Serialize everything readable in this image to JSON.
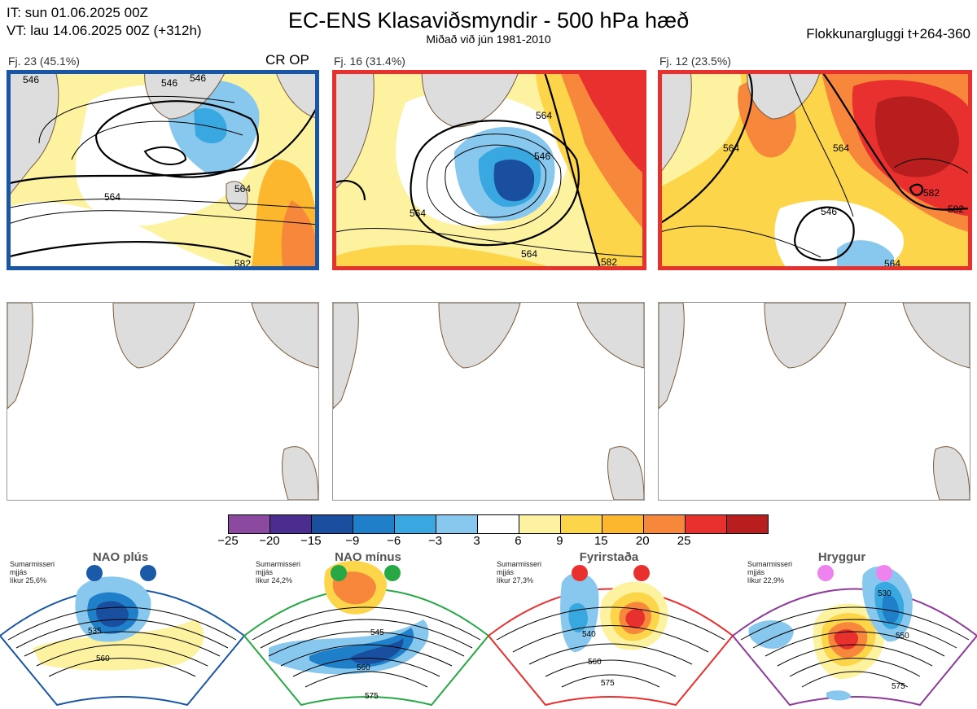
{
  "header": {
    "it_line": "IT: sun 01.06.2025 00Z",
    "vt_line": "VT: lau 14.06.2025 00Z  (+312h)",
    "title": "EC-ENS Klasaviðsmyndir - 500 hPa hæð",
    "subtitle": "Miðað við jún 1981-2010",
    "window": "Flokkunargluggi t+264-360"
  },
  "clusters": [
    {
      "label": "Fj. 23 (45.1%)",
      "badge": "CR OP",
      "frame_color": "#1a56a6",
      "contours": [
        "546",
        "546",
        "564",
        "564",
        "582",
        "546"
      ]
    },
    {
      "label": "Fj. 16 (31.4%)",
      "badge": "",
      "frame_color": "#e8302e",
      "contours": [
        "564",
        "546",
        "564",
        "564",
        "582"
      ]
    },
    {
      "label": "Fj. 12 (23.5%)",
      "badge": "",
      "frame_color": "#e8302e",
      "contours": [
        "564",
        "564",
        "546",
        "582",
        "582",
        "564"
      ]
    }
  ],
  "colorbar": {
    "colors": [
      "#8b4a9f",
      "#4a2d8f",
      "#1a4fa0",
      "#1f7fc8",
      "#39a8e0",
      "#88c8ee",
      "#ffffff",
      "#fdf2a0",
      "#fdd54b",
      "#fdb72e",
      "#f7873a",
      "#e8302e",
      "#b81e1e"
    ],
    "labels": [
      "−25",
      "−20",
      "−15",
      "−9",
      "−6",
      "−3",
      "3",
      "6",
      "9",
      "15",
      "20",
      "25"
    ]
  },
  "regimes": [
    {
      "name": "NAO plús",
      "season": "Sumarmisseri",
      "mode": "mjjás",
      "prob": "líkur 25,6%",
      "color": "#1a5aa8",
      "frame": "#1a56a6",
      "contours": [
        "535",
        "560"
      ]
    },
    {
      "name": "NAO mínus",
      "season": "Sumarmisseri",
      "mode": "mjjás",
      "prob": "líkur 24,2%",
      "color": "#28a745",
      "frame": "#28a745",
      "contours": [
        "545",
        "560",
        "575"
      ]
    },
    {
      "name": "Fyrirstaða",
      "season": "Sumarmisseri",
      "mode": "mjjás",
      "prob": "líkur 27,3%",
      "color": "#e8302e",
      "frame": "#e8302e",
      "contours": [
        "540",
        "560",
        "575"
      ]
    },
    {
      "name": "Hryggur",
      "season": "Sumarmisseri",
      "mode": "mjjás",
      "prob": "líkur 22,9%",
      "color": "#ee82ee",
      "frame": "#8e3a9a",
      "contours": [
        "530",
        "550",
        "575"
      ]
    }
  ]
}
